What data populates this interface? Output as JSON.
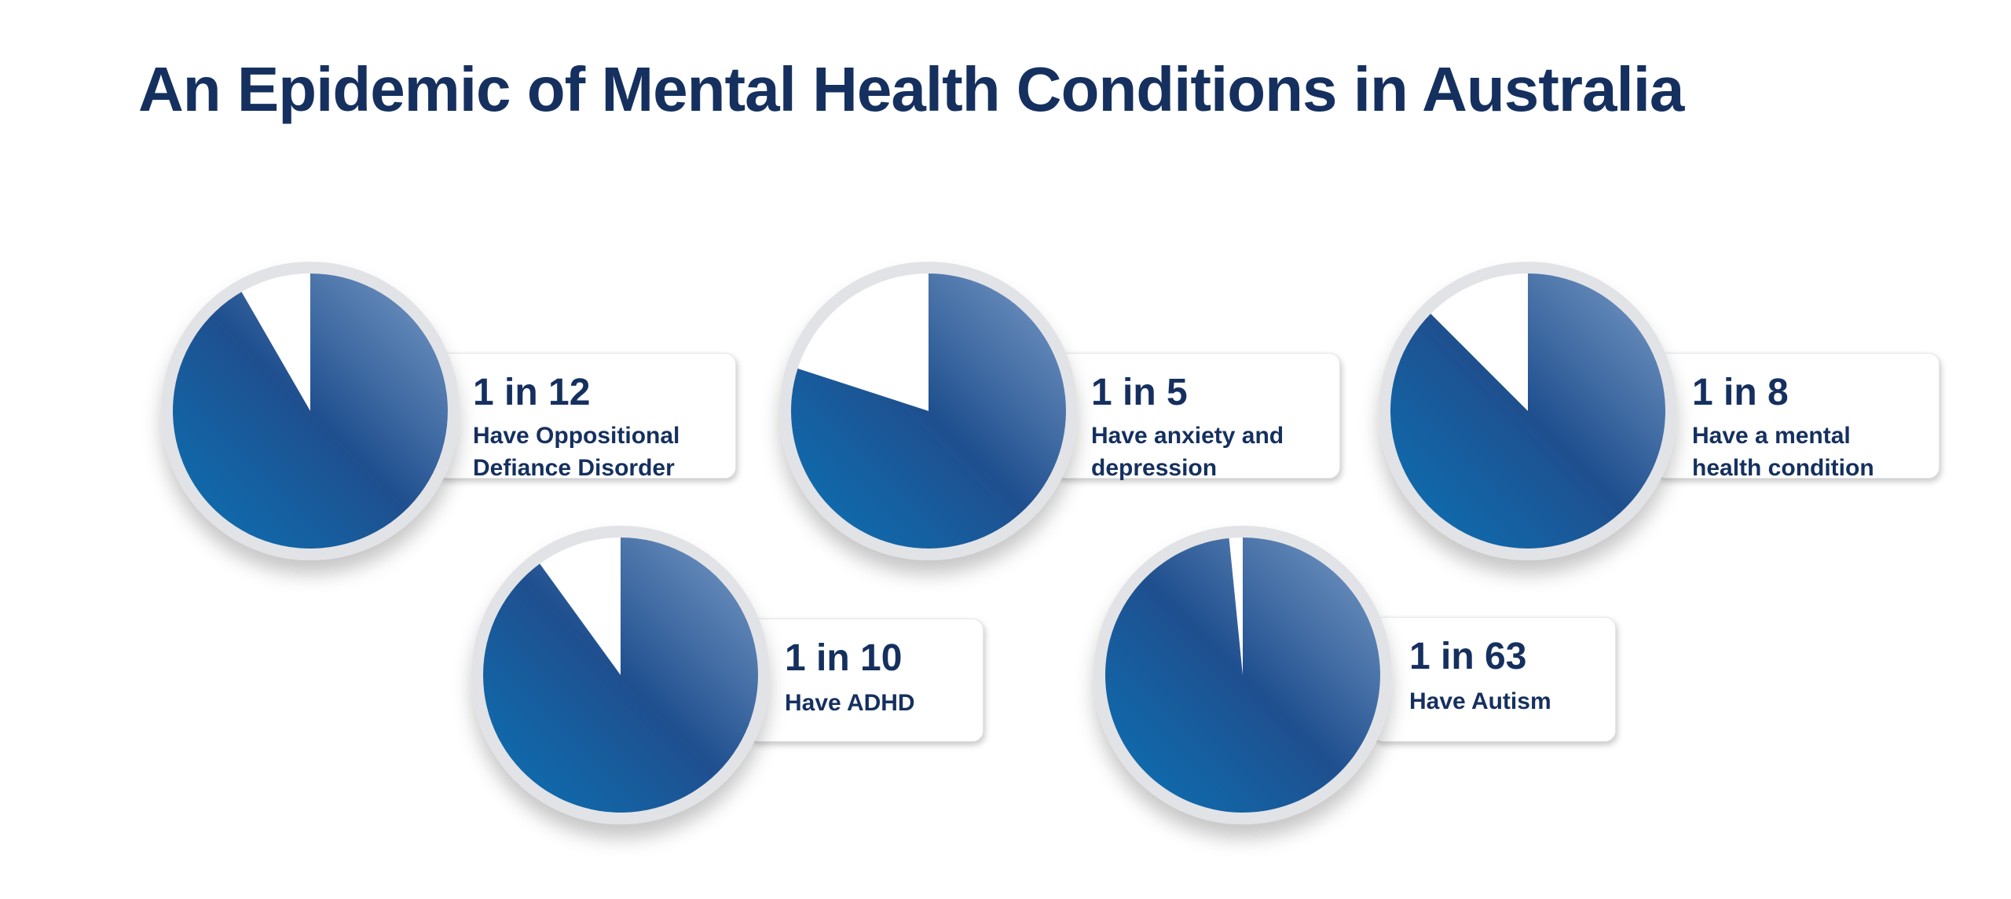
{
  "title": "An Epidemic of Mental Health Conditions in Australia",
  "colors": {
    "title": "#15305f",
    "pie_light": "#7b9cc6",
    "pie_mid": "#1f4f8f",
    "pie_dark": "#0a73b5",
    "remainder": "#ffffff",
    "ring": "#e2e3e6"
  },
  "chart_data": {
    "type": "pie",
    "title": "An Epidemic of Mental Health Conditions in Australia",
    "charts": [
      {
        "label": "1 in 12",
        "description": "Have Oppositional\nDefiance Disorder",
        "ratio": 12,
        "highlighted_fraction": 0.0833
      },
      {
        "label": "1 in 5",
        "description": "Have anxiety and\ndepression",
        "ratio": 5,
        "highlighted_fraction": 0.2
      },
      {
        "label": "1 in 8",
        "description": "Have a mental\nhealth condition",
        "ratio": 8,
        "highlighted_fraction": 0.125
      },
      {
        "label": "1 in 10",
        "description": "Have ADHD",
        "ratio": 10,
        "highlighted_fraction": 0.1
      },
      {
        "label": "1 in 63",
        "description": "Have Autism",
        "ratio": 63,
        "highlighted_fraction": 0.0159
      }
    ]
  }
}
